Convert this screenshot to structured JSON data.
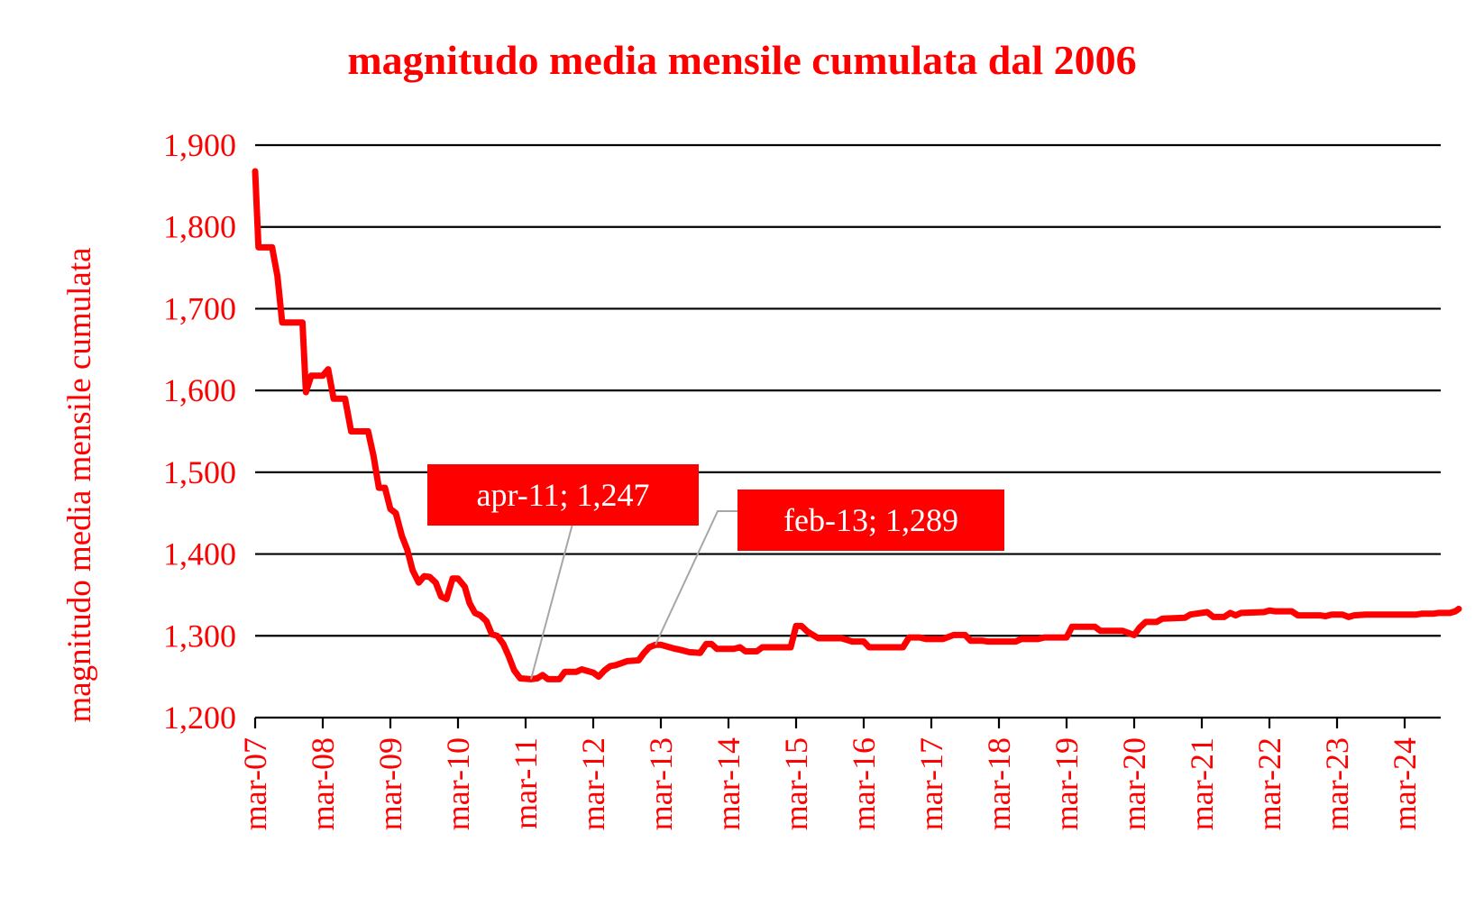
{
  "chart_data": {
    "type": "line",
    "title": "magnitudo media mensile cumulata dal 2006",
    "ylabel": "magnitudo media mensile cumulata",
    "xlabel": "",
    "ylim": [
      1.2,
      1.9
    ],
    "y_ticks": [
      1.2,
      1.3,
      1.4,
      1.5,
      1.6,
      1.7,
      1.8,
      1.9
    ],
    "y_tick_labels": [
      "1,200",
      "1,300",
      "1,400",
      "1,500",
      "1,600",
      "1,700",
      "1,800",
      "1,900"
    ],
    "x_tick_labels": [
      "mar-07",
      "mar-08",
      "mar-09",
      "mar-10",
      "mar-11",
      "mar-12",
      "mar-13",
      "mar-14",
      "mar-15",
      "mar-16",
      "mar-17",
      "mar-18",
      "mar-19",
      "mar-20",
      "mar-21",
      "mar-22",
      "mar-23",
      "mar-24"
    ],
    "grid": "horizontal",
    "legend": "none",
    "colors": {
      "series": "#ff0000",
      "grid": "#000000",
      "text": "#ff0000",
      "leader": "#a6a6a6",
      "callout_text": "#ffffff"
    },
    "series": [
      {
        "values": [
          [
            2007.0,
            1.868
          ],
          [
            2007.05,
            1.775
          ],
          [
            2007.25,
            1.775
          ],
          [
            2007.33,
            1.74
          ],
          [
            2007.4,
            1.683
          ],
          [
            2007.7,
            1.683
          ],
          [
            2007.75,
            1.598
          ],
          [
            2007.83,
            1.618
          ],
          [
            2008.0,
            1.618
          ],
          [
            2008.08,
            1.626
          ],
          [
            2008.16,
            1.59
          ],
          [
            2008.33,
            1.59
          ],
          [
            2008.42,
            1.55
          ],
          [
            2008.67,
            1.55
          ],
          [
            2008.75,
            1.52
          ],
          [
            2008.83,
            1.481
          ],
          [
            2008.92,
            1.481
          ],
          [
            2009.0,
            1.455
          ],
          [
            2009.08,
            1.45
          ],
          [
            2009.17,
            1.422
          ],
          [
            2009.25,
            1.405
          ],
          [
            2009.33,
            1.38
          ],
          [
            2009.42,
            1.365
          ],
          [
            2009.5,
            1.373
          ],
          [
            2009.58,
            1.372
          ],
          [
            2009.67,
            1.365
          ],
          [
            2009.75,
            1.348
          ],
          [
            2009.83,
            1.345
          ],
          [
            2009.92,
            1.37
          ],
          [
            2010.0,
            1.37
          ],
          [
            2010.1,
            1.36
          ],
          [
            2010.17,
            1.34
          ],
          [
            2010.25,
            1.328
          ],
          [
            2010.33,
            1.325
          ],
          [
            2010.42,
            1.318
          ],
          [
            2010.5,
            1.302
          ],
          [
            2010.58,
            1.3
          ],
          [
            2010.67,
            1.29
          ],
          [
            2010.75,
            1.275
          ],
          [
            2010.83,
            1.258
          ],
          [
            2010.92,
            1.248
          ],
          [
            2011.08,
            1.247
          ],
          [
            2011.17,
            1.248
          ],
          [
            2011.25,
            1.252
          ],
          [
            2011.33,
            1.247
          ],
          [
            2011.5,
            1.247
          ],
          [
            2011.58,
            1.256
          ],
          [
            2011.75,
            1.256
          ],
          [
            2011.83,
            1.259
          ],
          [
            2012.0,
            1.255
          ],
          [
            2012.08,
            1.25
          ],
          [
            2012.17,
            1.258
          ],
          [
            2012.25,
            1.263
          ],
          [
            2012.33,
            1.264
          ],
          [
            2012.5,
            1.269
          ],
          [
            2012.67,
            1.27
          ],
          [
            2012.75,
            1.279
          ],
          [
            2012.83,
            1.286
          ],
          [
            2012.92,
            1.289
          ],
          [
            2013.0,
            1.289
          ],
          [
            2013.17,
            1.285
          ],
          [
            2013.33,
            1.282
          ],
          [
            2013.42,
            1.28
          ],
          [
            2013.58,
            1.279
          ],
          [
            2013.67,
            1.29
          ],
          [
            2013.75,
            1.29
          ],
          [
            2013.83,
            1.284
          ],
          [
            2014.08,
            1.284
          ],
          [
            2014.17,
            1.286
          ],
          [
            2014.25,
            1.281
          ],
          [
            2014.42,
            1.281
          ],
          [
            2014.5,
            1.286
          ],
          [
            2014.92,
            1.286
          ],
          [
            2015.0,
            1.312
          ],
          [
            2015.08,
            1.312
          ],
          [
            2015.17,
            1.305
          ],
          [
            2015.33,
            1.297
          ],
          [
            2015.67,
            1.297
          ],
          [
            2015.75,
            1.295
          ],
          [
            2015.83,
            1.293
          ],
          [
            2016.0,
            1.293
          ],
          [
            2016.08,
            1.286
          ],
          [
            2016.58,
            1.286
          ],
          [
            2016.67,
            1.298
          ],
          [
            2016.83,
            1.298
          ],
          [
            2016.92,
            1.296
          ],
          [
            2017.17,
            1.296
          ],
          [
            2017.33,
            1.301
          ],
          [
            2017.5,
            1.301
          ],
          [
            2017.58,
            1.294
          ],
          [
            2017.75,
            1.294
          ],
          [
            2017.83,
            1.293
          ],
          [
            2018.25,
            1.293
          ],
          [
            2018.33,
            1.296
          ],
          [
            2018.58,
            1.296
          ],
          [
            2018.67,
            1.298
          ],
          [
            2019.0,
            1.298
          ],
          [
            2019.08,
            1.311
          ],
          [
            2019.42,
            1.311
          ],
          [
            2019.5,
            1.306
          ],
          [
            2019.83,
            1.306
          ],
          [
            2020.0,
            1.301
          ],
          [
            2020.08,
            1.31
          ],
          [
            2020.17,
            1.317
          ],
          [
            2020.33,
            1.317
          ],
          [
            2020.42,
            1.321
          ],
          [
            2020.75,
            1.322
          ],
          [
            2020.83,
            1.326
          ],
          [
            2021.0,
            1.328
          ],
          [
            2021.08,
            1.329
          ],
          [
            2021.17,
            1.323
          ],
          [
            2021.33,
            1.323
          ],
          [
            2021.42,
            1.328
          ],
          [
            2021.5,
            1.325
          ],
          [
            2021.58,
            1.328
          ],
          [
            2021.92,
            1.329
          ],
          [
            2022.0,
            1.331
          ],
          [
            2022.08,
            1.33
          ],
          [
            2022.33,
            1.33
          ],
          [
            2022.42,
            1.325
          ],
          [
            2022.75,
            1.325
          ],
          [
            2022.83,
            1.324
          ],
          [
            2022.92,
            1.326
          ],
          [
            2023.08,
            1.326
          ],
          [
            2023.17,
            1.323
          ],
          [
            2023.25,
            1.325
          ],
          [
            2023.42,
            1.326
          ],
          [
            2023.58,
            1.326
          ],
          [
            2024.17,
            1.326
          ],
          [
            2024.25,
            1.327
          ],
          [
            2024.42,
            1.327
          ],
          [
            2024.5,
            1.328
          ],
          [
            2024.67,
            1.328
          ],
          [
            2024.75,
            1.33
          ],
          [
            2024.8,
            1.333
          ]
        ]
      }
    ],
    "annotations": [
      {
        "text": "apr-11; 1,247",
        "x": 2011.08,
        "y": 1.247
      },
      {
        "text": "feb-13; 1,289",
        "x": 2012.92,
        "y": 1.289
      }
    ]
  }
}
